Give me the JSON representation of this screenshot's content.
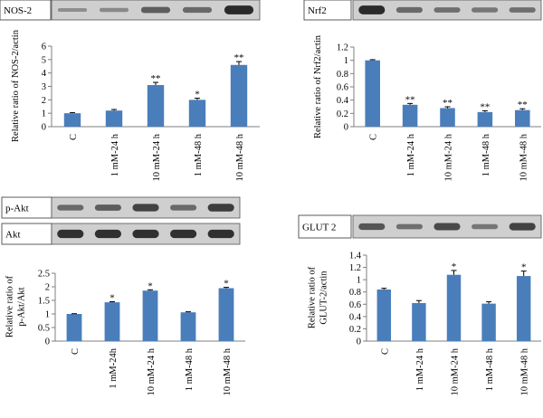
{
  "colors": {
    "bar": "#4a7ebb",
    "axis": "#7f7f7f",
    "blot_bg": "#cfcfcf",
    "band": "#1a1a1a",
    "error": "#000000"
  },
  "chart_data": [
    {
      "type": "bar",
      "panel": "NOS-2",
      "blot_labels": [
        "NOS-2"
      ],
      "categories": [
        "C",
        "1 mM-24 h",
        "10 mM-24 h",
        "1 mM-48 h",
        "10 mM-48 h"
      ],
      "values": [
        1.0,
        1.2,
        3.1,
        2.0,
        4.6
      ],
      "errors": [
        0.05,
        0.08,
        0.2,
        0.12,
        0.25
      ],
      "significance": [
        "",
        "",
        "**",
        "*",
        "**"
      ],
      "ylabel": "Relative ratio of NOS-2/actin",
      "ylim": [
        0,
        6
      ],
      "yticks": [
        "0",
        "1",
        "2",
        "3",
        "4",
        "5",
        "6"
      ],
      "band_intensity": [
        [
          0.15,
          0.2,
          0.55,
          0.45,
          0.95
        ]
      ]
    },
    {
      "type": "bar",
      "panel": "Nrf2",
      "blot_labels": [
        "Nrf2"
      ],
      "categories": [
        "C",
        "1 mM-24 h",
        "10 mM-24 h",
        "1 mM-48 h",
        "10 mM-48 h"
      ],
      "values": [
        1.0,
        0.33,
        0.28,
        0.22,
        0.25
      ],
      "errors": [
        0.01,
        0.02,
        0.02,
        0.02,
        0.02
      ],
      "significance": [
        "",
        "**",
        "**",
        "**",
        "**"
      ],
      "ylabel": "Relative ratio of Nrf2/actin",
      "ylim": [
        0,
        1.2
      ],
      "yticks": [
        "0",
        "0.2",
        "0.4",
        "0.6",
        "0.8",
        "1",
        "1.2"
      ],
      "band_intensity": [
        [
          0.95,
          0.45,
          0.4,
          0.35,
          0.4
        ]
      ]
    },
    {
      "type": "bar",
      "panel": "p-Akt",
      "blot_labels": [
        "p-Akt",
        "Akt"
      ],
      "categories": [
        "C",
        "1 mM-24h",
        "10 mM-24 h",
        "1 mM-48 h",
        "10 mM-48 h"
      ],
      "values": [
        1.0,
        1.43,
        1.86,
        1.06,
        1.95
      ],
      "errors": [
        0.01,
        0.02,
        0.03,
        0.02,
        0.03
      ],
      "significance": [
        "",
        "*",
        "*",
        "",
        "*"
      ],
      "ylabel": "Relative ratio of p-Akt/Akt",
      "ylim": [
        0,
        2.5
      ],
      "yticks": [
        "0",
        "0.5",
        "1",
        "1.5",
        "2",
        "2.5"
      ],
      "band_intensity": [
        [
          0.45,
          0.55,
          0.75,
          0.45,
          0.8
        ],
        [
          0.9,
          0.9,
          0.9,
          0.9,
          0.9
        ]
      ]
    },
    {
      "type": "bar",
      "panel": "GLUT 2",
      "blot_labels": [
        "GLUT 2"
      ],
      "categories": [
        "C",
        "1 mM-24 h",
        "10 mM-24 h",
        "1 mM-48 h",
        "10 mM-48 h"
      ],
      "values": [
        0.84,
        0.62,
        1.08,
        0.61,
        1.06
      ],
      "errors": [
        0.02,
        0.04,
        0.07,
        0.03,
        0.08
      ],
      "significance": [
        "",
        "",
        "*",
        "",
        "*"
      ],
      "ylabel": "Relative ratio of GLUT-2/actin",
      "ylim": [
        0,
        1.4
      ],
      "yticks": [
        "0",
        "0.2",
        "0.4",
        "0.6",
        "0.8",
        "1",
        "1.2",
        "1.4"
      ],
      "band_intensity": [
        [
          0.6,
          0.4,
          0.7,
          0.35,
          0.75
        ]
      ]
    }
  ]
}
